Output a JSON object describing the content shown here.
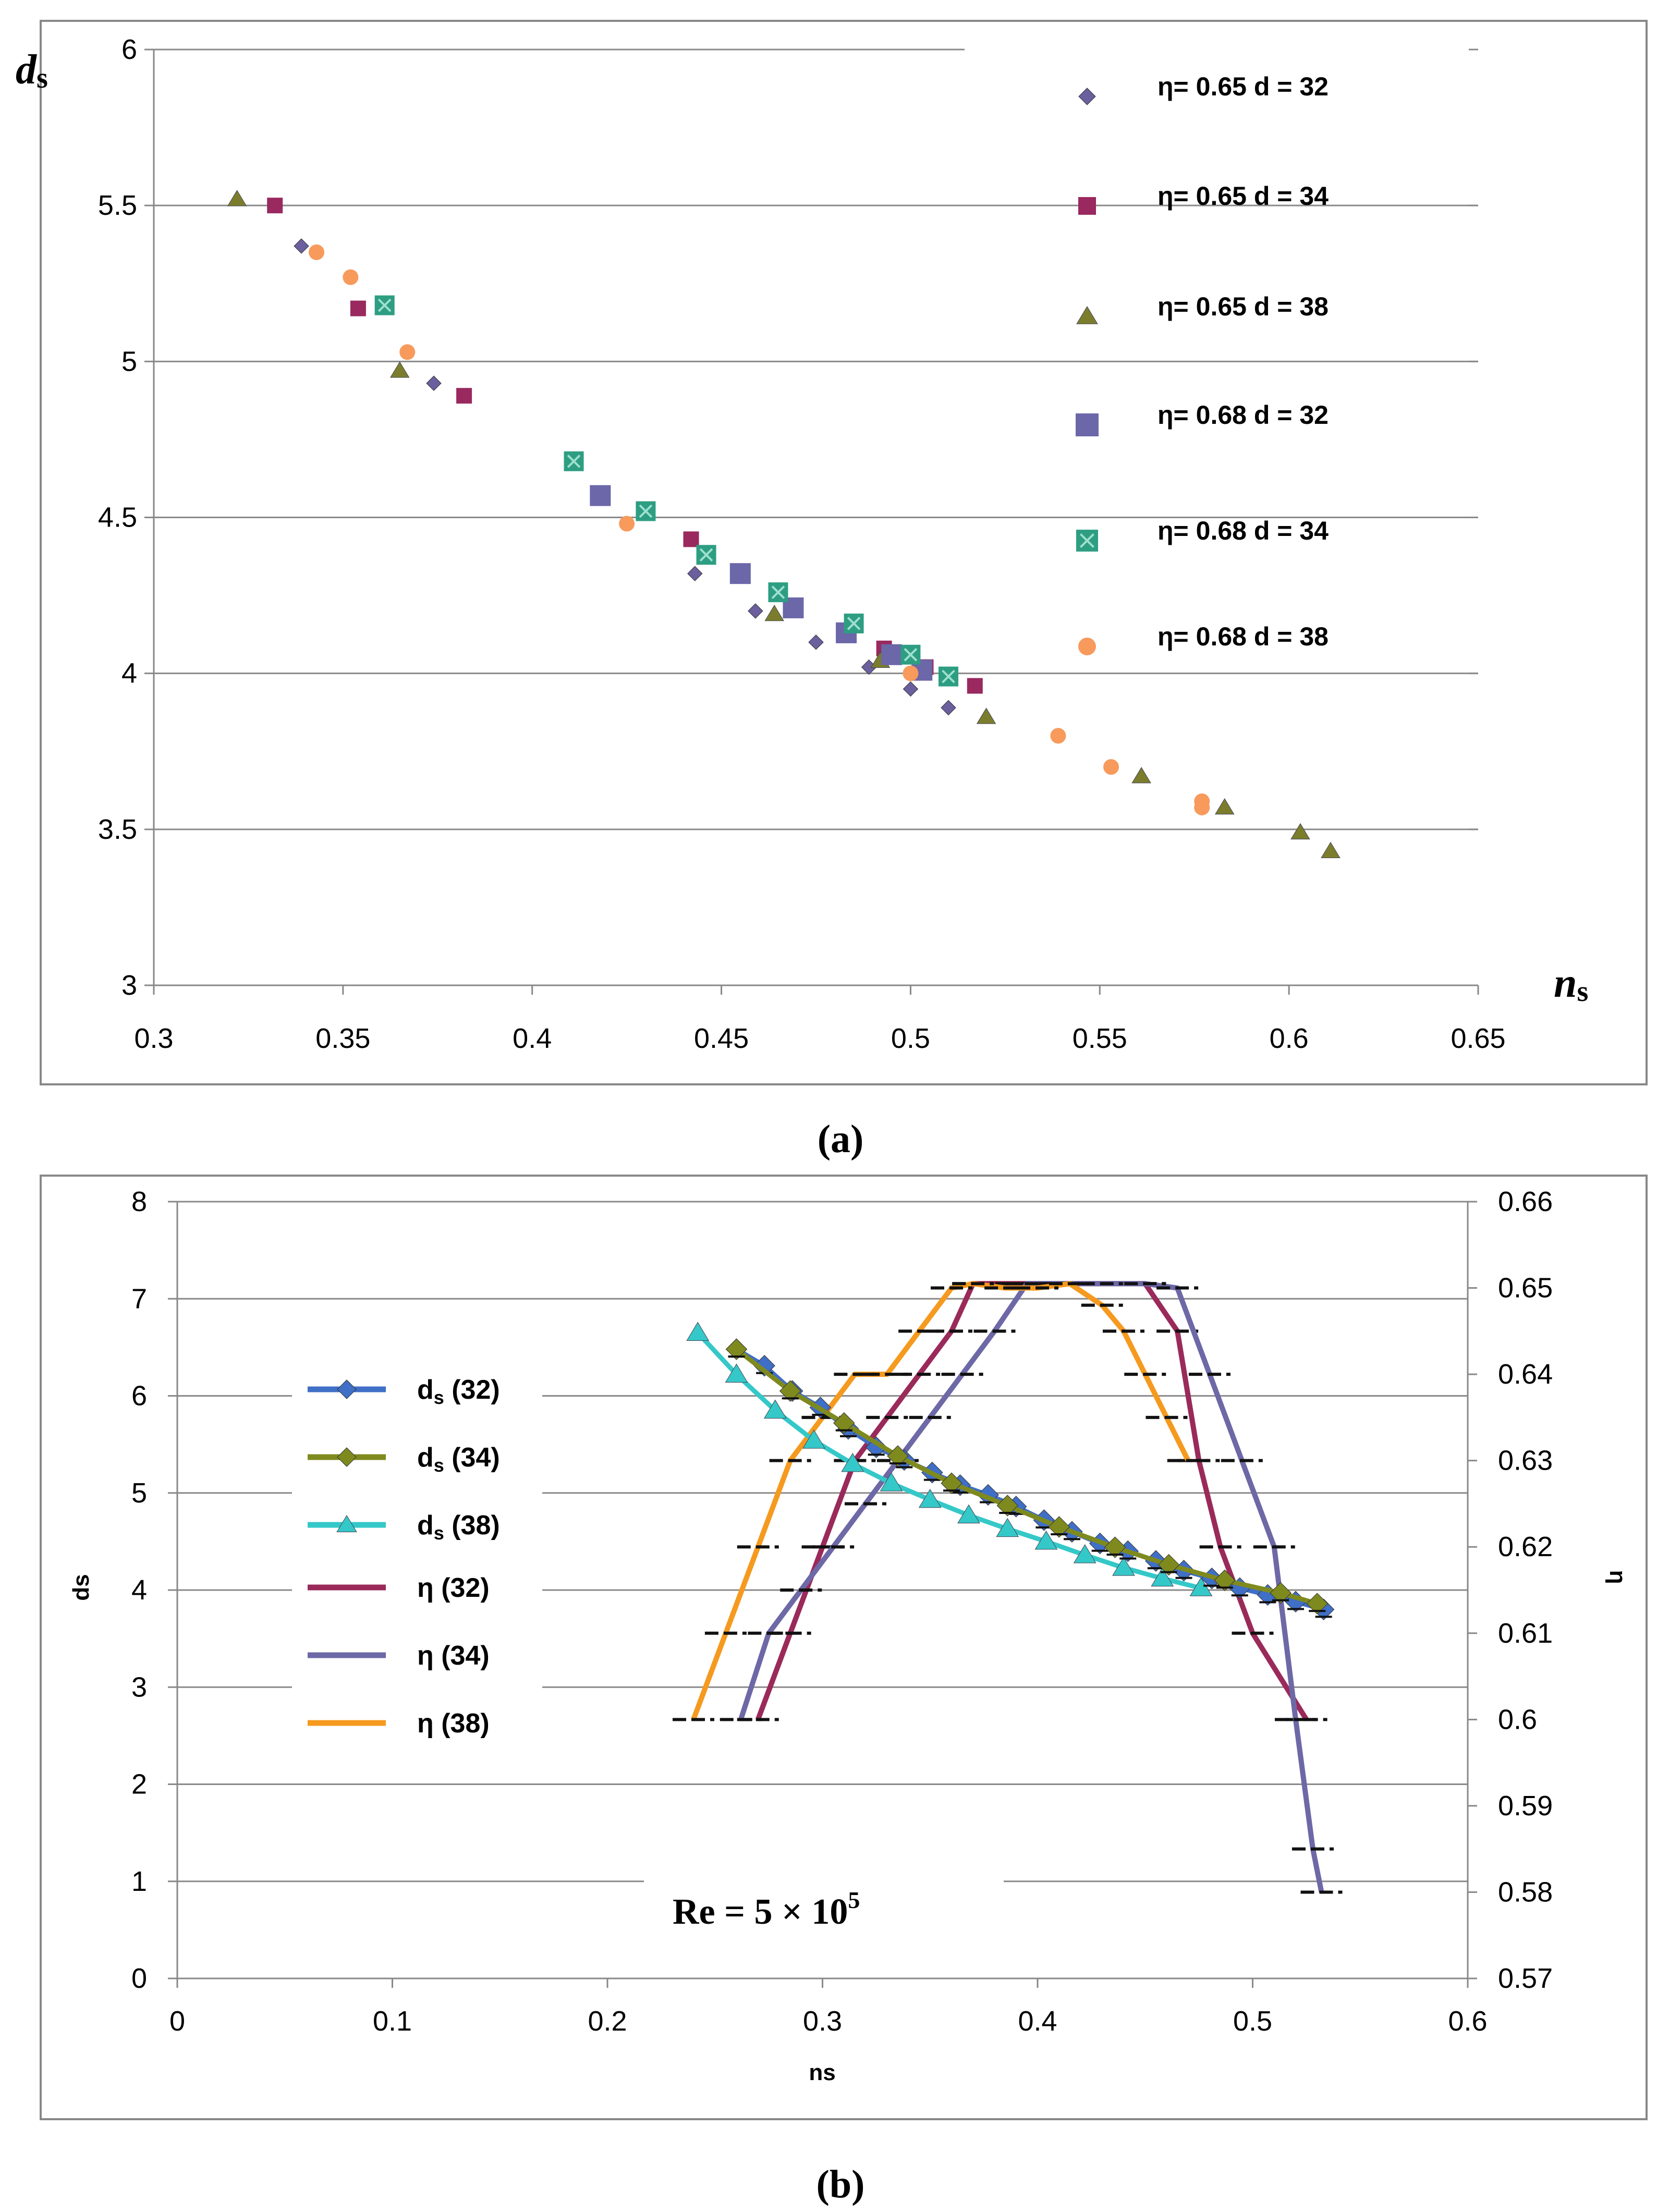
{
  "chart_data": [
    {
      "id": "a",
      "type": "scatter",
      "caption": "(a)",
      "xlabel_main": "n",
      "xlabel_sub": "s",
      "ylabel_main": "d",
      "ylabel_sub": "s",
      "xlim": [
        0.3,
        0.65
      ],
      "ylim": [
        3,
        6
      ],
      "xticks": [
        "0.3",
        "0.35",
        "0.4",
        "0.45",
        "0.5",
        "0.55",
        "0.6",
        "0.65"
      ],
      "yticks": [
        "3",
        "3.5",
        "4",
        "4.5",
        "5",
        "5.5",
        "6"
      ],
      "grid": "horizontal",
      "legend_position": "right",
      "series": [
        {
          "name": "η= 0.65  d = 32",
          "marker": "diamond",
          "color": "#6b5f9e",
          "points": [
            [
              0.339,
              5.37
            ],
            [
              0.374,
              4.93
            ],
            [
              0.443,
              4.32
            ],
            [
              0.459,
              4.2
            ],
            [
              0.475,
              4.1
            ],
            [
              0.489,
              4.02
            ],
            [
              0.5,
              3.95
            ],
            [
              0.51,
              3.89
            ]
          ]
        },
        {
          "name": "η= 0.65  d = 34",
          "marker": "square-small",
          "color": "#99295f",
          "points": [
            [
              0.332,
              5.5
            ],
            [
              0.354,
              5.17
            ],
            [
              0.382,
              4.89
            ],
            [
              0.442,
              4.43
            ],
            [
              0.485,
              4.16
            ],
            [
              0.493,
              4.08
            ],
            [
              0.504,
              4.02
            ],
            [
              0.517,
              3.96
            ]
          ]
        },
        {
          "name": "η= 0.65  d = 38",
          "marker": "triangle",
          "color": "#7b7d2c",
          "points": [
            [
              0.322,
              5.52
            ],
            [
              0.365,
              4.97
            ],
            [
              0.464,
              4.19
            ],
            [
              0.492,
              4.04
            ],
            [
              0.52,
              3.86
            ],
            [
              0.561,
              3.67
            ],
            [
              0.583,
              3.57
            ],
            [
              0.603,
              3.49
            ],
            [
              0.611,
              3.43
            ]
          ]
        },
        {
          "name": "η= 0.68  d = 32",
          "marker": "square",
          "color": "#6b67a8",
          "points": [
            [
              0.418,
              4.57
            ],
            [
              0.455,
              4.32
            ],
            [
              0.469,
              4.21
            ],
            [
              0.483,
              4.13
            ],
            [
              0.495,
              4.06
            ],
            [
              0.503,
              4.01
            ]
          ]
        },
        {
          "name": "η= 0.68  d = 34",
          "marker": "square-x",
          "color": "#2e9e82",
          "points": [
            [
              0.361,
              5.18
            ],
            [
              0.411,
              4.68
            ],
            [
              0.43,
              4.52
            ],
            [
              0.446,
              4.38
            ],
            [
              0.465,
              4.26
            ],
            [
              0.485,
              4.16
            ],
            [
              0.5,
              4.06
            ],
            [
              0.51,
              3.99
            ]
          ]
        },
        {
          "name": "η= 0.68  d = 38",
          "marker": "circle",
          "color": "#f79a5c",
          "points": [
            [
              0.343,
              5.35
            ],
            [
              0.352,
              5.27
            ],
            [
              0.367,
              5.03
            ],
            [
              0.425,
              4.48
            ],
            [
              0.5,
              4.0
            ],
            [
              0.539,
              3.8
            ],
            [
              0.553,
              3.7
            ],
            [
              0.577,
              3.59
            ],
            [
              0.577,
              3.57
            ]
          ]
        }
      ]
    },
    {
      "id": "b",
      "type": "line",
      "caption": "(b)",
      "xlabel": "ns",
      "ylabel_left": "ds",
      "ylabel_right": "η",
      "xlim": [
        0,
        0.6
      ],
      "ylim_left": [
        0,
        8
      ],
      "ylim_right": [
        0.57,
        0.66
      ],
      "xticks": [
        "0",
        "0.1",
        "0.2",
        "0.3",
        "0.4",
        "0.5",
        "0.6"
      ],
      "yticks_left": [
        "0",
        "1",
        "2",
        "3",
        "4",
        "5",
        "6",
        "7",
        "8"
      ],
      "yticks_right": [
        "0.57",
        "0.58",
        "0.59",
        "0.6",
        "0.61",
        "0.62",
        "0.63",
        "0.64",
        "0.65",
        "0.66"
      ],
      "grid": "horizontal",
      "annotation": {
        "base": "Re = 5 × 10",
        "exponent": "5"
      },
      "legend_position": "left",
      "series": [
        {
          "name": "d",
          "sub": "s",
          "suffix": " (32)",
          "axis": "left",
          "color": "#3f6fc6",
          "marker": "diamond",
          "x": [
            0.26,
            0.273,
            0.286,
            0.299,
            0.312,
            0.325,
            0.338,
            0.351,
            0.364,
            0.377,
            0.39,
            0.403,
            0.416,
            0.429,
            0.442,
            0.455,
            0.468,
            0.481,
            0.494,
            0.507,
            0.52,
            0.533
          ],
          "y": [
            6.48,
            6.31,
            6.05,
            5.88,
            5.66,
            5.47,
            5.34,
            5.21,
            5.08,
            4.98,
            4.86,
            4.72,
            4.6,
            4.48,
            4.4,
            4.3,
            4.2,
            4.12,
            4.02,
            3.95,
            3.88,
            3.8
          ]
        },
        {
          "name": "d",
          "sub": "s",
          "suffix": " (34)",
          "axis": "left",
          "color": "#7f8a1e",
          "marker": "diamond",
          "x": [
            0.26,
            0.285,
            0.31,
            0.335,
            0.36,
            0.386,
            0.41,
            0.436,
            0.461,
            0.487,
            0.513,
            0.53
          ],
          "y": [
            6.48,
            6.05,
            5.72,
            5.38,
            5.1,
            4.87,
            4.65,
            4.44,
            4.26,
            4.1,
            3.97,
            3.86
          ]
        },
        {
          "name": "d",
          "sub": "s",
          "suffix": " (38)",
          "axis": "left",
          "color": "#35c8c8",
          "marker": "triangle",
          "x": [
            0.242,
            0.26,
            0.278,
            0.296,
            0.314,
            0.332,
            0.35,
            0.368,
            0.386,
            0.404,
            0.422,
            0.44,
            0.458,
            0.476
          ],
          "y": [
            6.65,
            6.22,
            5.85,
            5.54,
            5.3,
            5.1,
            4.93,
            4.77,
            4.63,
            4.5,
            4.36,
            4.23,
            4.12,
            4.02
          ]
        },
        {
          "name": "η",
          "sub": "",
          "suffix": " (32)",
          "axis": "right",
          "color": "#9a2a5a",
          "marker": "dash",
          "x": [
            0.27,
            0.285,
            0.3,
            0.315,
            0.33,
            0.345,
            0.36,
            0.37,
            0.39,
            0.41,
            0.43,
            0.45,
            0.465,
            0.475,
            0.485,
            0.5,
            0.525
          ],
          "y": [
            0.6,
            0.61,
            0.62,
            0.63,
            0.635,
            0.64,
            0.645,
            0.6505,
            0.6505,
            0.6505,
            0.6505,
            0.6505,
            0.645,
            0.63,
            0.62,
            0.61,
            0.6
          ]
        },
        {
          "name": "η",
          "sub": "",
          "suffix": " (34)",
          "axis": "right",
          "color": "#6d68a6",
          "marker": "dash",
          "x": [
            0.262,
            0.275,
            0.29,
            0.305,
            0.32,
            0.335,
            0.35,
            0.365,
            0.38,
            0.395,
            0.41,
            0.43,
            0.45,
            0.465,
            0.48,
            0.495,
            0.51,
            0.52,
            0.528,
            0.532
          ],
          "y": [
            0.6,
            0.61,
            0.615,
            0.62,
            0.625,
            0.63,
            0.635,
            0.64,
            0.645,
            0.6505,
            0.6505,
            0.6505,
            0.6505,
            0.65,
            0.64,
            0.63,
            0.62,
            0.6,
            0.585,
            0.58
          ]
        },
        {
          "name": "η",
          "sub": "",
          "suffix": " (38)",
          "axis": "right",
          "color": "#f59a1f",
          "marker": "dash",
          "x": [
            0.24,
            0.255,
            0.27,
            0.285,
            0.3,
            0.315,
            0.33,
            0.345,
            0.36,
            0.37,
            0.385,
            0.4,
            0.415,
            0.43,
            0.44,
            0.45,
            0.46,
            0.47
          ],
          "y": [
            0.6,
            0.61,
            0.62,
            0.63,
            0.635,
            0.64,
            0.64,
            0.645,
            0.65,
            0.6505,
            0.65,
            0.65,
            0.6505,
            0.648,
            0.645,
            0.64,
            0.635,
            0.63
          ]
        }
      ]
    }
  ]
}
